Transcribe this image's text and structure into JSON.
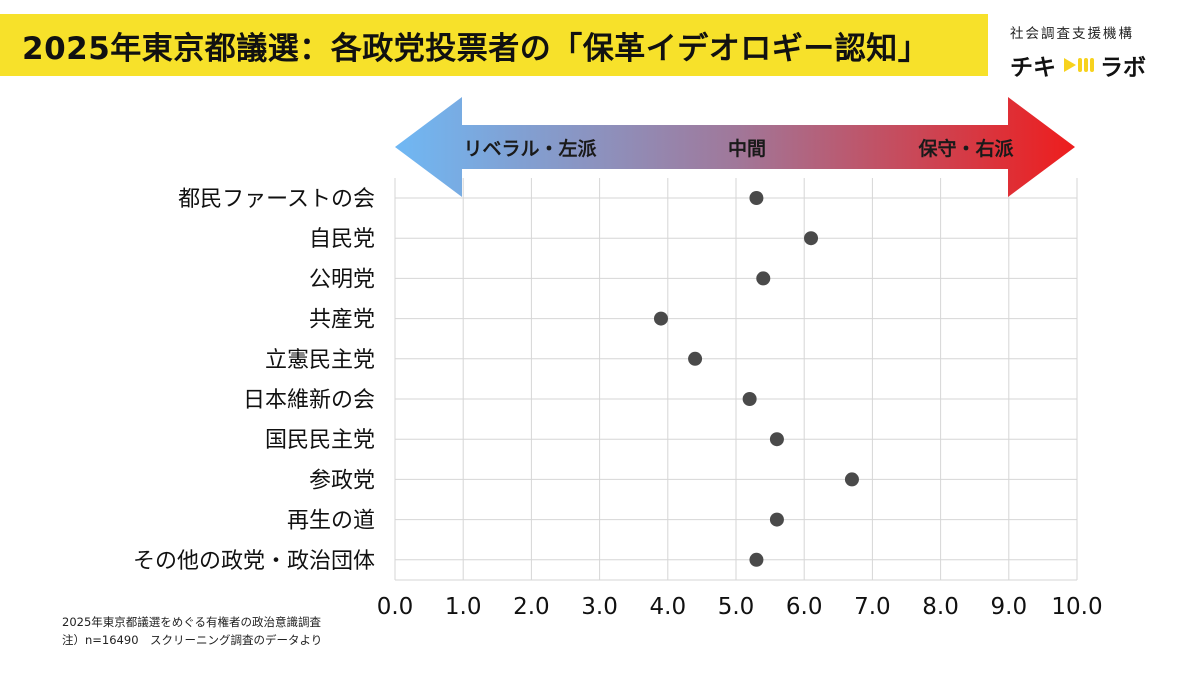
{
  "header": {
    "title": "2025年東京都議選：各政党投票者の「保革イデオロギー認知」"
  },
  "logo": {
    "org": "社会調査支援機構",
    "name_left": "チキ",
    "name_right": "ラボ",
    "icon": "megaphone-icon"
  },
  "spectrum": {
    "left_label": "リベラル・左派",
    "center_label": "中間",
    "right_label": "保守・右派",
    "colors": {
      "left": "#6fb8f4",
      "mid": "#a0789a",
      "right": "#ee1d1d"
    }
  },
  "chart_data": {
    "type": "scatter",
    "categories": [
      "都民ファーストの会",
      "自民党",
      "公明党",
      "共産党",
      "立憲民主党",
      "日本維新の会",
      "国民民主党",
      "参政党",
      "再生の道",
      "その他の政党・政治団体"
    ],
    "values": [
      5.3,
      6.1,
      5.4,
      3.9,
      4.4,
      5.2,
      5.6,
      6.7,
      5.6,
      5.3
    ],
    "xlim": [
      0,
      10
    ],
    "xticks": [
      "0.0",
      "1.0",
      "2.0",
      "3.0",
      "4.0",
      "5.0",
      "6.0",
      "7.0",
      "8.0",
      "9.0",
      "10.0"
    ],
    "grid": true,
    "marker_color": "#4a4a4a"
  },
  "notes": [
    "2025年東京都議選をめぐる有権者の政治意識調査",
    "注）n=16490　スクリーニング調査のデータより"
  ]
}
